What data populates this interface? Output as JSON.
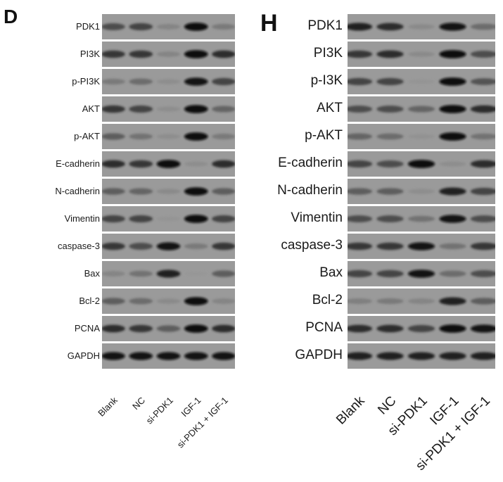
{
  "panels": [
    {
      "letter": "D",
      "lanes": [
        "Blank",
        "NC",
        "si-PDK1",
        "IGF-1",
        "si-PDK1 + IGF-1"
      ],
      "rows": [
        {
          "label": "PDK1",
          "intensity": [
            0.7,
            0.75,
            0.3,
            1.0,
            0.4
          ]
        },
        {
          "label": "PI3K",
          "intensity": [
            0.8,
            0.8,
            0.3,
            1.0,
            0.85
          ]
        },
        {
          "label": "p-PI3K",
          "intensity": [
            0.4,
            0.5,
            0.2,
            0.95,
            0.75
          ]
        },
        {
          "label": "AKT",
          "intensity": [
            0.8,
            0.75,
            0.2,
            1.0,
            0.55
          ]
        },
        {
          "label": "p-AKT",
          "intensity": [
            0.6,
            0.45,
            0.2,
            1.0,
            0.4
          ]
        },
        {
          "label": "E-cadherin",
          "intensity": [
            0.85,
            0.8,
            1.0,
            0.2,
            0.85
          ]
        },
        {
          "label": "N-cadherin",
          "intensity": [
            0.6,
            0.55,
            0.25,
            1.0,
            0.6
          ]
        },
        {
          "label": "Vimentin",
          "intensity": [
            0.75,
            0.75,
            0.1,
            1.0,
            0.75
          ]
        },
        {
          "label": "caspase-3",
          "intensity": [
            0.8,
            0.7,
            0.95,
            0.4,
            0.8
          ]
        },
        {
          "label": "Bax",
          "intensity": [
            0.3,
            0.45,
            0.9,
            0.05,
            0.6
          ]
        },
        {
          "label": "Bcl-2",
          "intensity": [
            0.6,
            0.5,
            0.25,
            1.0,
            0.3
          ]
        },
        {
          "label": "PCNA",
          "intensity": [
            0.85,
            0.8,
            0.6,
            1.0,
            0.85
          ]
        },
        {
          "label": "GAPDH",
          "intensity": [
            0.95,
            0.95,
            0.95,
            0.95,
            0.95
          ]
        }
      ]
    },
    {
      "letter": "H",
      "lanes": [
        "Blank",
        "NC",
        "si-PDK1",
        "IGF-1",
        "si-PDK1 + IGF-1"
      ],
      "rows": [
        {
          "label": "PDK1",
          "intensity": [
            0.9,
            0.85,
            0.25,
            0.95,
            0.5
          ]
        },
        {
          "label": "PI3K",
          "intensity": [
            0.8,
            0.85,
            0.25,
            1.0,
            0.7
          ]
        },
        {
          "label": "p-I3K",
          "intensity": [
            0.75,
            0.75,
            0.1,
            1.0,
            0.65
          ]
        },
        {
          "label": "AKT",
          "intensity": [
            0.7,
            0.7,
            0.55,
            1.0,
            0.85
          ]
        },
        {
          "label": "p-AKT",
          "intensity": [
            0.55,
            0.5,
            0.15,
            1.0,
            0.45
          ]
        },
        {
          "label": "E-cadherin",
          "intensity": [
            0.75,
            0.7,
            1.0,
            0.2,
            0.85
          ]
        },
        {
          "label": "N-cadherin",
          "intensity": [
            0.6,
            0.6,
            0.2,
            0.9,
            0.75
          ]
        },
        {
          "label": "Vimentin",
          "intensity": [
            0.7,
            0.7,
            0.45,
            0.95,
            0.7
          ]
        },
        {
          "label": "caspase-3",
          "intensity": [
            0.8,
            0.8,
            0.95,
            0.45,
            0.8
          ]
        },
        {
          "label": "Bax",
          "intensity": [
            0.75,
            0.75,
            0.95,
            0.5,
            0.7
          ]
        },
        {
          "label": "Bcl-2",
          "intensity": [
            0.35,
            0.4,
            0.3,
            0.9,
            0.6
          ]
        },
        {
          "label": "PCNA",
          "intensity": [
            0.85,
            0.85,
            0.75,
            1.0,
            0.95
          ]
        },
        {
          "label": "GAPDH",
          "intensity": [
            0.9,
            0.9,
            0.9,
            0.9,
            0.9
          ]
        }
      ]
    }
  ]
}
